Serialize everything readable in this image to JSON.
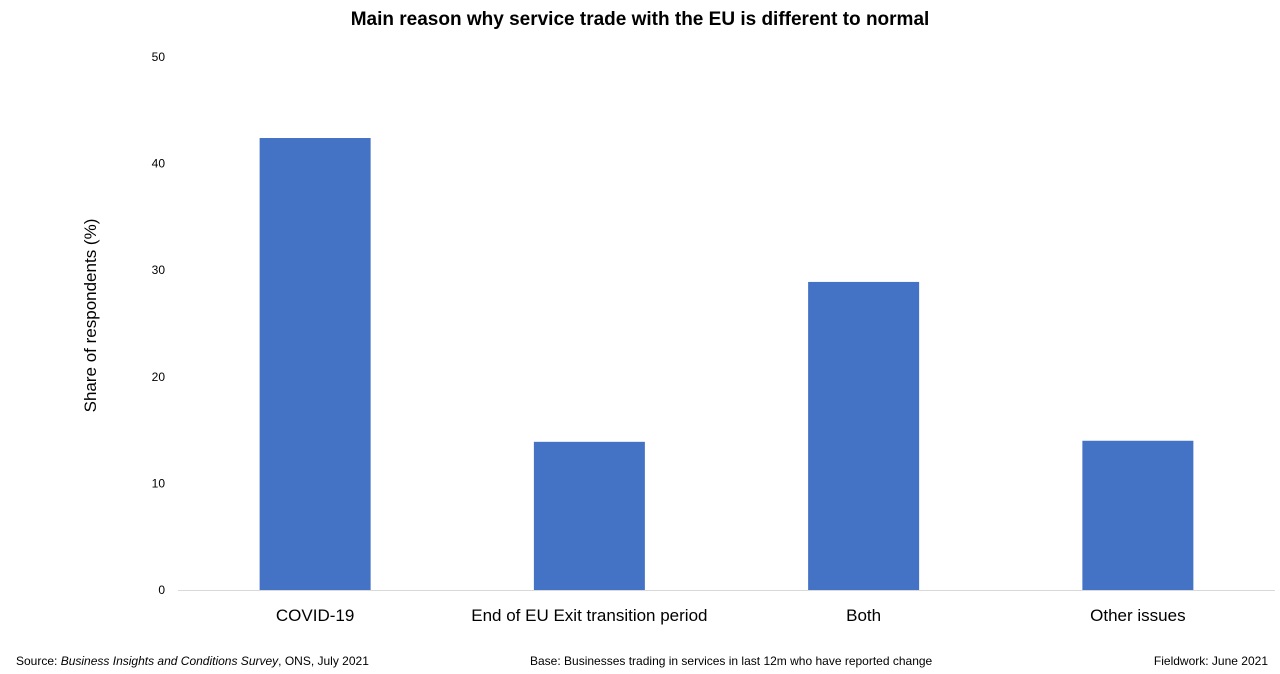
{
  "chart_data": {
    "type": "bar",
    "title": "Main reason why service trade with the EU is different to normal",
    "xlabel": "",
    "ylabel": "Share of respondents (%)",
    "categories": [
      "COVID-19",
      "End of EU Exit transition period",
      "Both",
      "Other issues"
    ],
    "values": [
      42.4,
      13.9,
      28.9,
      14.0
    ],
    "ylim": [
      0,
      50
    ],
    "yticks": [
      0,
      10,
      20,
      30,
      40,
      50
    ],
    "grid": false,
    "bar_color": "#4472C4"
  },
  "footer": {
    "source_prefix": "Source: ",
    "source_title": "Business Insights and Conditions Survey",
    "source_suffix": ", ONS, July 2021",
    "base": "Base: Businesses trading in services in last 12m who have reported change",
    "fieldwork": "Fieldwork: June 2021"
  }
}
